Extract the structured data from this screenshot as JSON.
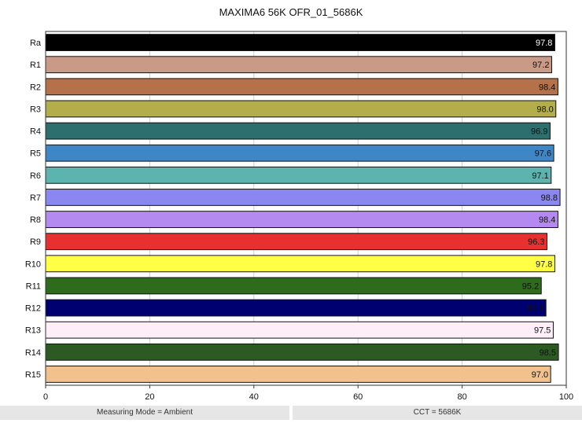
{
  "chart_data": {
    "type": "bar",
    "orientation": "horizontal",
    "title": "MAXIMA6 56K OFR_01_5686K",
    "categories": [
      "Ra",
      "R1",
      "R2",
      "R3",
      "R4",
      "R5",
      "R6",
      "R7",
      "R8",
      "R9",
      "R10",
      "R11",
      "R12",
      "R13",
      "R14",
      "R15"
    ],
    "values": [
      97.8,
      97.2,
      98.4,
      98.0,
      96.9,
      97.6,
      97.1,
      98.8,
      98.4,
      96.3,
      97.8,
      95.2,
      96.1,
      97.5,
      98.5,
      97.0
    ],
    "value_labels": [
      "97.8",
      "97.2",
      "98.4",
      "98.0",
      "96.9",
      "97.6",
      "97.1",
      "98.8",
      "98.4",
      "96.3",
      "97.8",
      "95.2",
      "96.1",
      "97.5",
      "98.5",
      "97.0"
    ],
    "colors": [
      "#000000",
      "#c99a86",
      "#b5714a",
      "#b3ad4a",
      "#2d6e6e",
      "#3f86c6",
      "#5db3ad",
      "#8a88f0",
      "#b58af0",
      "#e83030",
      "#ffff44",
      "#2e6b1c",
      "#000070",
      "#fdeef8",
      "#2d5a22",
      "#f2c28e"
    ],
    "label_colors": [
      "#ffffff",
      "#111111",
      "#111111",
      "#111111",
      "#111111",
      "#111111",
      "#111111",
      "#111111",
      "#111111",
      "#111111",
      "#111111",
      "#111111",
      "#111111",
      "#111111",
      "#111111",
      "#111111"
    ],
    "xlim": [
      0,
      100
    ],
    "xticks": [
      0,
      20,
      40,
      60,
      80,
      100
    ],
    "grid": true
  },
  "footer": {
    "left": "Measuring Mode = Ambient",
    "right": "CCT = 5686K"
  }
}
